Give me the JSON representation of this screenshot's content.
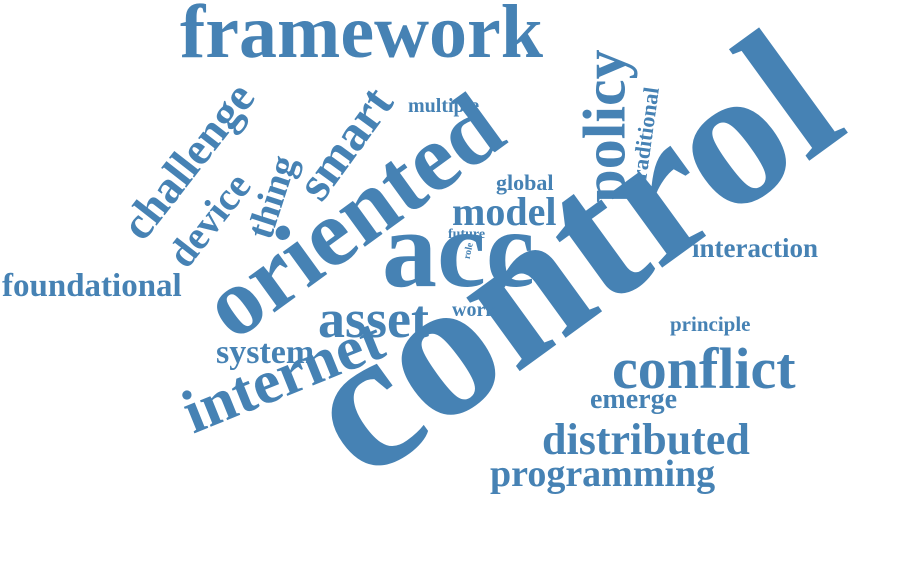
{
  "word_color": "#4682b4",
  "words": {
    "control": "control",
    "acc": "acc",
    "oriented": "oriented",
    "framework": "framework",
    "policy": "policy",
    "internet": "internet",
    "asset": "asset",
    "smart": "smart",
    "challenge": "challenge",
    "device": "device",
    "thing": "thing",
    "conflict": "conflict",
    "distributed": "distributed",
    "programming": "programming",
    "model": "model",
    "foundational": "foundational",
    "system": "system",
    "interaction": "interaction",
    "traditional": "traditional",
    "emerge": "emerge",
    "principle": "principle",
    "multiple": "multiple",
    "global": "global",
    "work": "work",
    "future": "future",
    "role": "role"
  }
}
